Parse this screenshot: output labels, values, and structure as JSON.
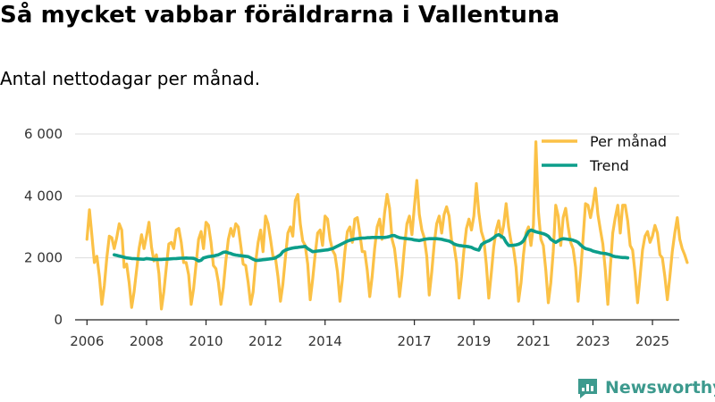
{
  "title": "Så mycket vabbar föräldrarna i Vallentuna",
  "subtitle": "Antal nettodagar per månad.",
  "brand": "Newsworthy",
  "colors": {
    "per_month": "#fbc146",
    "trend": "#0c9e8a",
    "grid": "#dddddd",
    "axis": "#222222",
    "brand": "#3d9a8e"
  },
  "chart_data": {
    "type": "line",
    "title": "Så mycket vabbar föräldrarna i Vallentuna",
    "subtitle": "Antal nettodagar per månad.",
    "xlabel": "",
    "ylabel": "",
    "xlim": [
      2005.6,
      2025.9
    ],
    "ylim": [
      0,
      6000
    ],
    "y_ticks": [
      {
        "value": 0,
        "label": "0"
      },
      {
        "value": 2000,
        "label": "2 000"
      },
      {
        "value": 4000,
        "label": "4 000"
      },
      {
        "value": 6000,
        "label": "6 000"
      }
    ],
    "x_ticks": [
      {
        "value": 2006,
        "label": "2006"
      },
      {
        "value": 2008,
        "label": "2008"
      },
      {
        "value": 2010,
        "label": "2010"
      },
      {
        "value": 2012,
        "label": "2012"
      },
      {
        "value": 2014,
        "label": "2014"
      },
      {
        "value": 2017,
        "label": "2017"
      },
      {
        "value": 2019,
        "label": "2019"
      },
      {
        "value": 2021,
        "label": "2021"
      },
      {
        "value": 2023,
        "label": "2023"
      },
      {
        "value": 2025,
        "label": "2025"
      }
    ],
    "legend_position": "top-right",
    "series": [
      {
        "name": "Per månad",
        "start": 2006.0,
        "step": 0.0833333,
        "values": [
          2600,
          3550,
          2700,
          1850,
          2050,
          1400,
          500,
          1100,
          2000,
          2700,
          2650,
          2300,
          2650,
          3100,
          2900,
          1700,
          1800,
          1200,
          400,
          900,
          1600,
          2300,
          2750,
          2300,
          2700,
          3150,
          2350,
          1900,
          2100,
          1500,
          350,
          900,
          1700,
          2450,
          2500,
          2300,
          2900,
          2950,
          2500,
          1850,
          1850,
          1450,
          500,
          1000,
          1800,
          2600,
          2850,
          2300,
          3150,
          3050,
          2500,
          1750,
          1650,
          1200,
          500,
          1050,
          1900,
          2600,
          2950,
          2700,
          3100,
          3000,
          2400,
          1800,
          1750,
          1200,
          500,
          900,
          1850,
          2500,
          2900,
          2200,
          3350,
          3100,
          2600,
          2050,
          2000,
          1400,
          600,
          1150,
          2000,
          2800,
          3000,
          2700,
          3850,
          4050,
          3100,
          2550,
          2400,
          1800,
          650,
          1300,
          2100,
          2800,
          2900,
          2400,
          3350,
          3250,
          2600,
          2250,
          2100,
          1550,
          600,
          1300,
          2200,
          2850,
          3000,
          2500,
          3250,
          3300,
          2800,
          2200,
          2200,
          1600,
          750,
          1400,
          2300,
          3000,
          3250,
          2600,
          3450,
          4050,
          3600,
          2600,
          2300,
          1600,
          750,
          1450,
          2350,
          3100,
          3350,
          2750,
          3650,
          4500,
          3400,
          2900,
          2650,
          2050,
          800,
          1550,
          2450,
          3100,
          3350,
          2800,
          3400,
          3650,
          3350,
          2550,
          2400,
          1850,
          700,
          1400,
          2250,
          2950,
          3250,
          2900,
          3350,
          4400,
          3450,
          2850,
          2600,
          1800,
          700,
          1500,
          2350,
          2900,
          3200,
          2650,
          3050,
          3750,
          3000,
          2500,
          2300,
          1700,
          600,
          1200,
          2100,
          2800,
          3000,
          2400,
          3050,
          5750,
          3500,
          2600,
          2400,
          1600,
          550,
          1200,
          2200,
          3700,
          3350,
          2400,
          3300,
          3600,
          3000,
          2500,
          2300,
          1700,
          600,
          1500,
          2600,
          3750,
          3700,
          3300,
          3700,
          4250,
          3400,
          2900,
          2450,
          1600,
          500,
          1700,
          2800,
          3300,
          3700,
          2800,
          3700,
          3700,
          3200,
          2400,
          2250,
          1500,
          550,
          1400,
          2250,
          2700,
          2850,
          2500,
          2700,
          3050,
          2800,
          2100,
          2000,
          1400,
          650,
          1400,
          2200,
          2800,
          3300,
          2600,
          2300,
          2100,
          1850
        ]
      },
      {
        "name": "Trend",
        "start": 2006.9167,
        "step": 0.0833333,
        "values": [
          2100,
          2080,
          2060,
          2040,
          2020,
          2000,
          1990,
          1980,
          1975,
          1970,
          1965,
          1960,
          1955,
          1980,
          1970,
          1960,
          1950,
          1950,
          1950,
          1950,
          1955,
          1960,
          1965,
          1970,
          1975,
          1980,
          1985,
          1990,
          1990,
          1995,
          1990,
          1990,
          1985,
          1950,
          1900,
          1920,
          2000,
          2020,
          2040,
          2050,
          2060,
          2080,
          2100,
          2140,
          2180,
          2190,
          2160,
          2140,
          2110,
          2090,
          2080,
          2070,
          2060,
          2050,
          2040,
          2000,
          1960,
          1920,
          1920,
          1930,
          1940,
          1950,
          1960,
          1970,
          1980,
          2000,
          2050,
          2100,
          2200,
          2250,
          2280,
          2300,
          2320,
          2330,
          2340,
          2350,
          2360,
          2370,
          2300,
          2250,
          2200,
          2210,
          2220,
          2230,
          2240,
          2250,
          2260,
          2280,
          2300,
          2340,
          2380,
          2420,
          2460,
          2500,
          2540,
          2570,
          2590,
          2610,
          2620,
          2630,
          2640,
          2640,
          2650,
          2650,
          2660,
          2660,
          2660,
          2660,
          2660,
          2660,
          2670,
          2690,
          2720,
          2720,
          2680,
          2650,
          2640,
          2630,
          2620,
          2610,
          2600,
          2580,
          2570,
          2560,
          2580,
          2600,
          2610,
          2620,
          2620,
          2620,
          2620,
          2610,
          2600,
          2580,
          2560,
          2540,
          2500,
          2450,
          2420,
          2400,
          2390,
          2380,
          2370,
          2360,
          2340,
          2300,
          2270,
          2250,
          2420,
          2480,
          2520,
          2550,
          2600,
          2650,
          2720,
          2750,
          2700,
          2650,
          2500,
          2400,
          2400,
          2410,
          2420,
          2440,
          2480,
          2550,
          2700,
          2850,
          2900,
          2870,
          2840,
          2820,
          2800,
          2780,
          2750,
          2700,
          2600,
          2550,
          2500,
          2550,
          2600,
          2620,
          2610,
          2600,
          2590,
          2570,
          2540,
          2500,
          2420,
          2350,
          2300,
          2280,
          2260,
          2220,
          2200,
          2180,
          2160,
          2150,
          2140,
          2120,
          2100,
          2060,
          2040,
          2030,
          2020,
          2010,
          2010,
          2000
        ]
      }
    ]
  }
}
